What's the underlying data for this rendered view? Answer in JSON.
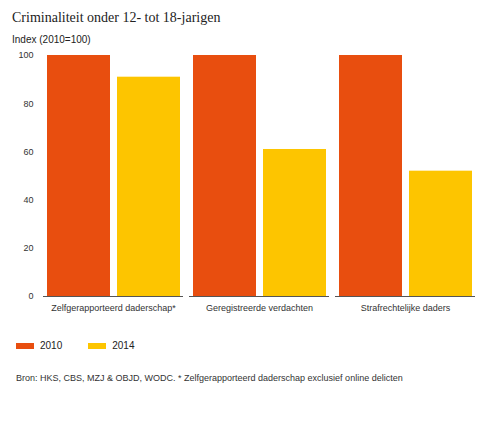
{
  "chart_data": {
    "type": "bar",
    "title": "Criminaliteit onder 12- tot 18-jarigen",
    "y_label": "Index (2010=100)",
    "categories": [
      "Zelfgerapporteerd daderschap*",
      "Geregistreerde verdachten",
      "Strafrechtelijke daders"
    ],
    "series": [
      {
        "name": "2010",
        "color": "#e84e0f",
        "values": [
          100,
          100,
          100
        ]
      },
      {
        "name": "2014",
        "color": "#fdc500",
        "values": [
          91,
          61,
          52
        ]
      }
    ],
    "ylim": [
      0,
      100
    ],
    "yticks": [
      0,
      20,
      40,
      60,
      80,
      100
    ],
    "grid": false,
    "legend": "bottom-left",
    "caption": "Bron: HKS, CBS, MZJ & OBJD, WODC. * Zelfgerapporteerd daderschap exclusief online delicten"
  }
}
